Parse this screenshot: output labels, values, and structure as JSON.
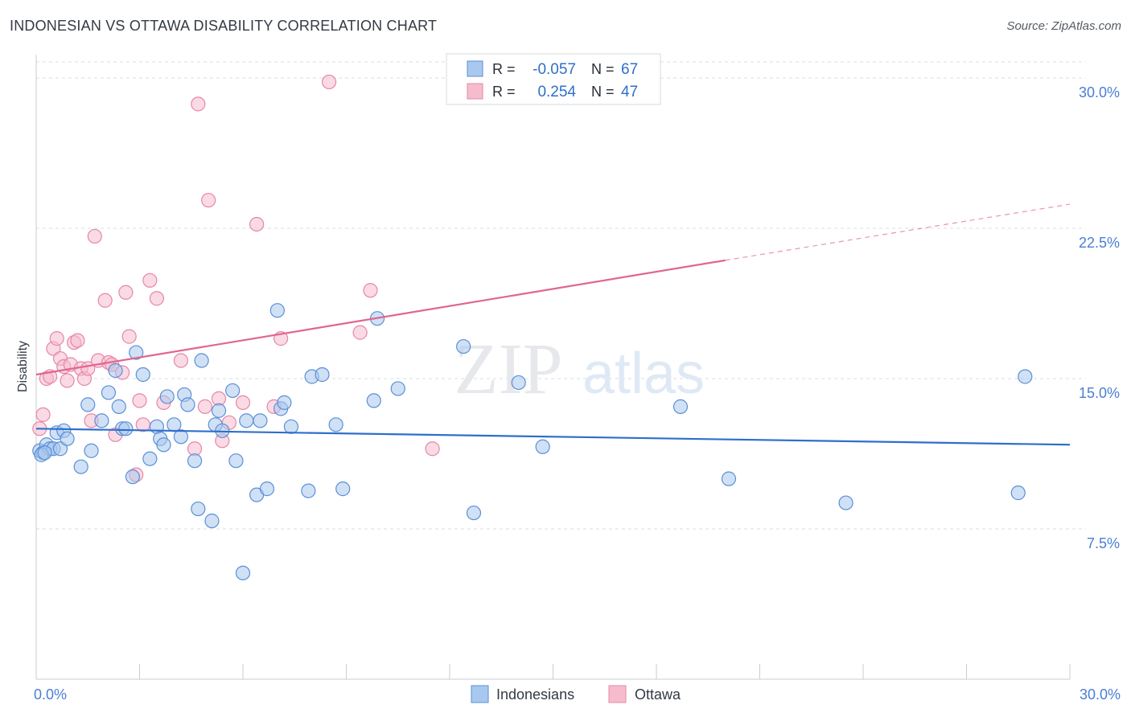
{
  "header": {
    "title": "INDONESIAN VS OTTAWA DISABILITY CORRELATION CHART",
    "source": "Source: ZipAtlas.com"
  },
  "watermark": {
    "zip": "ZIP",
    "atlas": "atlas"
  },
  "legend_stats": {
    "rows": [
      {
        "r_label": "R =",
        "r_value": "-0.057",
        "n_label": "N =",
        "n_value": "67"
      },
      {
        "r_label": "R =",
        "r_value": "0.254",
        "n_label": "N =",
        "n_value": "47"
      }
    ]
  },
  "legend_bottom": {
    "items": [
      "Indonesians",
      "Ottawa"
    ]
  },
  "colors": {
    "blue_fill": "#a9c8ef",
    "blue_stroke": "#5b8fd6",
    "blue_line": "#2e6fcb",
    "pink_fill": "#f6bccd",
    "pink_stroke": "#e687a6",
    "pink_line": "#e0668f",
    "tick_label": "#4a7fd4",
    "grid": "#d9dde3"
  },
  "chart_data": {
    "type": "scatter",
    "ylabel": "Disability",
    "xlim": [
      0,
      30
    ],
    "ylim": [
      0,
      30.8
    ],
    "x_tick_labels": [
      "0.0%",
      "30.0%"
    ],
    "y_ticks": [
      {
        "value": 7.5,
        "label": "7.5%"
      },
      {
        "value": 15.0,
        "label": "15.0%"
      },
      {
        "value": 22.5,
        "label": "22.5%"
      },
      {
        "value": 30.0,
        "label": "30.0%"
      }
    ],
    "grid": "horizontal dashed",
    "legend": "top-center and bottom-center",
    "series": [
      {
        "name": "Indonesians",
        "color": "#a9c8ef",
        "trend": {
          "x": [
            0,
            30
          ],
          "y": [
            12.5,
            11.7
          ]
        },
        "points": [
          [
            0.1,
            11.4
          ],
          [
            0.2,
            11.3
          ],
          [
            0.3,
            11.7
          ],
          [
            0.4,
            11.5
          ],
          [
            0.5,
            11.5
          ],
          [
            0.6,
            12.3
          ],
          [
            0.7,
            11.5
          ],
          [
            0.8,
            12.4
          ],
          [
            0.9,
            12.0
          ],
          [
            1.3,
            10.6
          ],
          [
            1.5,
            13.7
          ],
          [
            1.6,
            11.4
          ],
          [
            1.9,
            12.9
          ],
          [
            2.1,
            14.3
          ],
          [
            2.3,
            15.4
          ],
          [
            2.4,
            13.6
          ],
          [
            2.5,
            12.5
          ],
          [
            2.6,
            12.5
          ],
          [
            2.8,
            10.1
          ],
          [
            2.9,
            16.3
          ],
          [
            3.1,
            15.2
          ],
          [
            3.3,
            11.0
          ],
          [
            3.5,
            12.6
          ],
          [
            3.6,
            12.0
          ],
          [
            3.7,
            11.7
          ],
          [
            3.8,
            14.1
          ],
          [
            4.0,
            12.7
          ],
          [
            4.2,
            12.1
          ],
          [
            4.3,
            14.2
          ],
          [
            4.4,
            13.7
          ],
          [
            4.6,
            10.9
          ],
          [
            4.7,
            8.5
          ],
          [
            4.8,
            15.9
          ],
          [
            5.1,
            7.9
          ],
          [
            5.2,
            12.7
          ],
          [
            5.3,
            13.4
          ],
          [
            5.4,
            12.4
          ],
          [
            5.7,
            14.4
          ],
          [
            5.8,
            10.9
          ],
          [
            6.0,
            5.3
          ],
          [
            6.1,
            12.9
          ],
          [
            6.4,
            9.2
          ],
          [
            6.5,
            12.9
          ],
          [
            6.7,
            9.5
          ],
          [
            7.0,
            18.4
          ],
          [
            7.1,
            13.5
          ],
          [
            7.2,
            13.8
          ],
          [
            7.4,
            12.6
          ],
          [
            7.9,
            9.4
          ],
          [
            8.0,
            15.1
          ],
          [
            8.3,
            15.2
          ],
          [
            8.7,
            12.7
          ],
          [
            8.9,
            9.5
          ],
          [
            9.8,
            13.9
          ],
          [
            9.9,
            18.0
          ],
          [
            10.5,
            14.5
          ],
          [
            12.4,
            16.6
          ],
          [
            12.7,
            8.3
          ],
          [
            14.0,
            14.8
          ],
          [
            14.7,
            11.6
          ],
          [
            18.7,
            13.6
          ],
          [
            20.1,
            10.0
          ],
          [
            23.5,
            8.8
          ],
          [
            28.5,
            9.3
          ],
          [
            28.7,
            15.1
          ],
          [
            0.15,
            11.2
          ],
          [
            0.25,
            11.3
          ]
        ]
      },
      {
        "name": "Ottawa",
        "color": "#f6bccd",
        "trend": {
          "x": [
            0,
            20
          ],
          "y": [
            15.2,
            20.9
          ]
        },
        "trend_dashed": {
          "x": [
            20,
            30
          ],
          "y": [
            20.9,
            23.7
          ]
        },
        "points": [
          [
            0.1,
            12.5
          ],
          [
            0.2,
            13.2
          ],
          [
            0.3,
            15.0
          ],
          [
            0.4,
            15.1
          ],
          [
            0.5,
            16.5
          ],
          [
            0.6,
            17.0
          ],
          [
            0.7,
            16.0
          ],
          [
            0.8,
            15.6
          ],
          [
            0.9,
            14.9
          ],
          [
            1.0,
            15.7
          ],
          [
            1.1,
            16.8
          ],
          [
            1.2,
            16.9
          ],
          [
            1.3,
            15.5
          ],
          [
            1.4,
            15.0
          ],
          [
            1.5,
            15.5
          ],
          [
            1.6,
            12.9
          ],
          [
            1.7,
            22.1
          ],
          [
            1.8,
            15.9
          ],
          [
            2.0,
            18.9
          ],
          [
            2.1,
            15.8
          ],
          [
            2.2,
            15.7
          ],
          [
            2.3,
            12.2
          ],
          [
            2.5,
            15.3
          ],
          [
            2.6,
            19.3
          ],
          [
            2.7,
            17.1
          ],
          [
            2.9,
            10.2
          ],
          [
            3.0,
            13.9
          ],
          [
            3.1,
            12.7
          ],
          [
            3.3,
            19.9
          ],
          [
            3.5,
            19.0
          ],
          [
            3.7,
            13.8
          ],
          [
            4.2,
            15.9
          ],
          [
            4.6,
            11.5
          ],
          [
            4.7,
            28.7
          ],
          [
            4.9,
            13.6
          ],
          [
            5.0,
            23.9
          ],
          [
            5.3,
            14.0
          ],
          [
            5.4,
            11.9
          ],
          [
            5.6,
            12.8
          ],
          [
            6.0,
            13.8
          ],
          [
            6.4,
            22.7
          ],
          [
            6.9,
            13.6
          ],
          [
            7.1,
            17.0
          ],
          [
            8.5,
            29.8
          ],
          [
            9.4,
            17.3
          ],
          [
            9.7,
            19.4
          ],
          [
            11.5,
            11.5
          ]
        ]
      }
    ]
  }
}
